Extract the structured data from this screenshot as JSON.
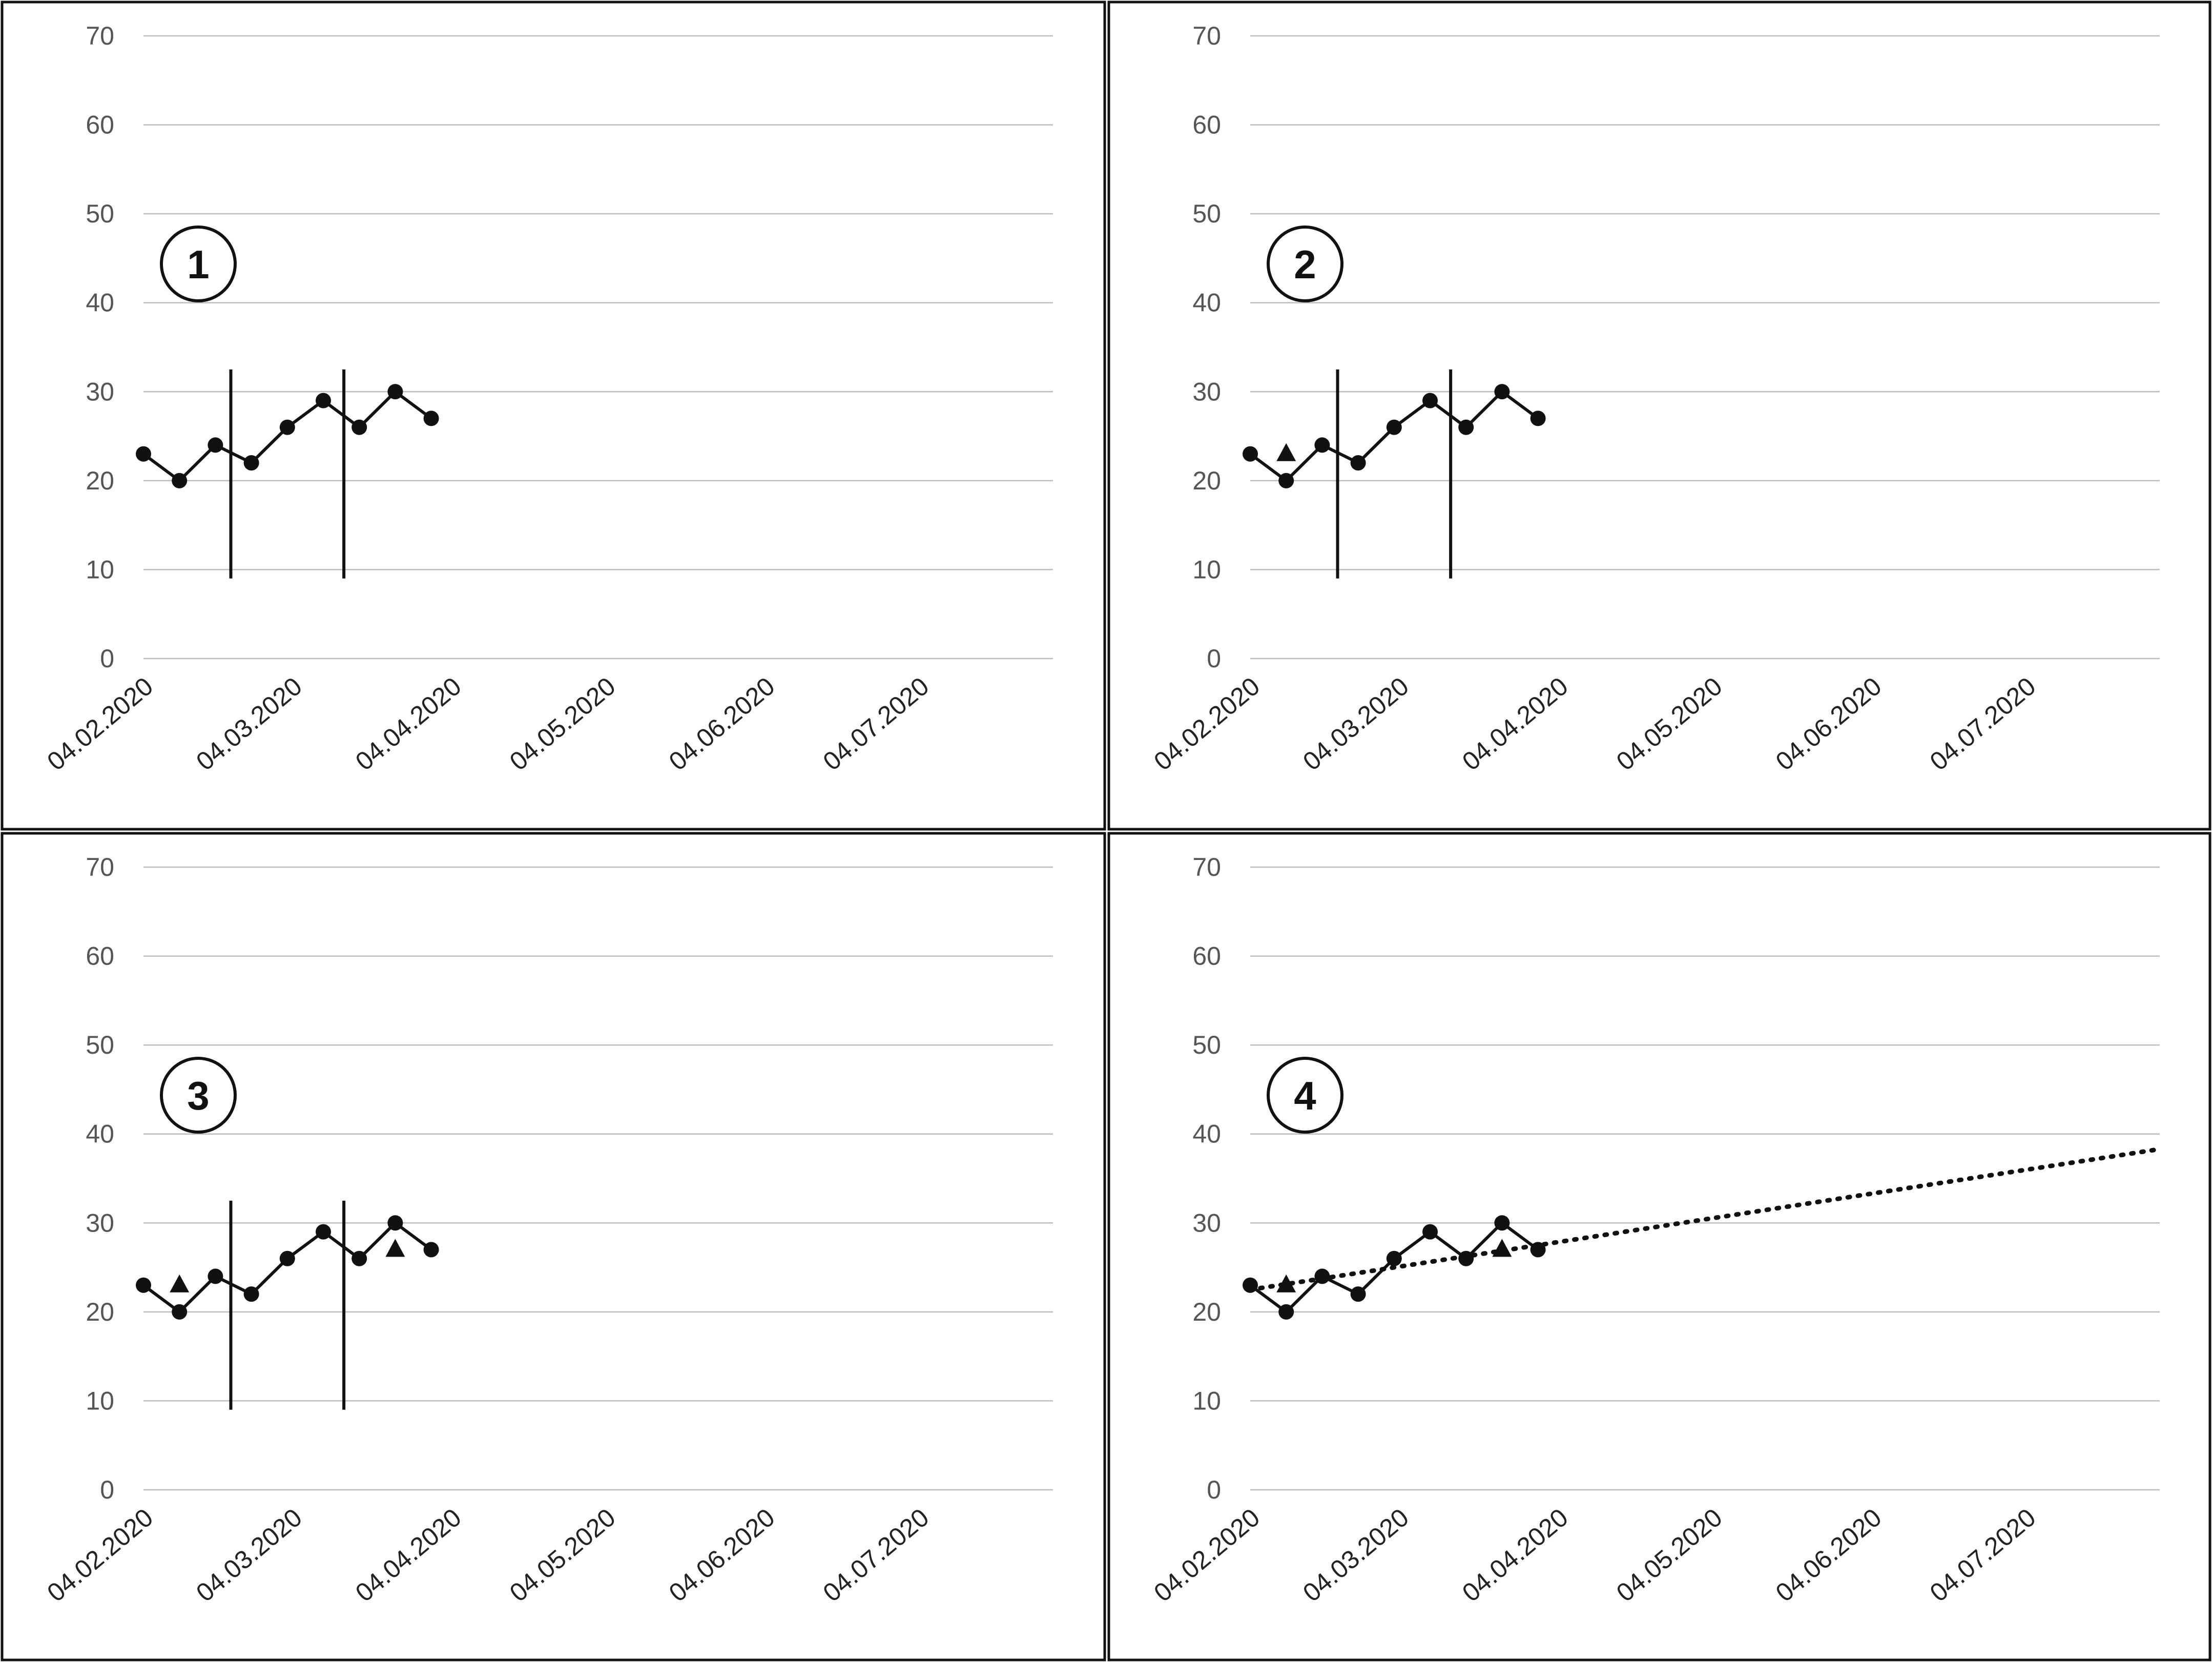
{
  "chart_data": [
    {
      "type": "line",
      "panel_label": "1",
      "ylim": [
        0,
        70
      ],
      "yticks": [
        0,
        10,
        20,
        30,
        40,
        50,
        60,
        70
      ],
      "x_tick_labels": [
        "04.02.2020",
        "04.03.2020",
        "04.04.2020",
        "04.05.2020",
        "04.06.2020",
        "04.07.2020"
      ],
      "xlim": [
        "2020-02-04",
        "2020-07-30"
      ],
      "grid": true,
      "series": [
        {
          "style": "solid-line-circles",
          "points": [
            {
              "x": "2020-02-04",
              "y": 23
            },
            {
              "x": "2020-02-11",
              "y": 20
            },
            {
              "x": "2020-02-18",
              "y": 24
            },
            {
              "x": "2020-02-25",
              "y": 22
            },
            {
              "x": "2020-03-03",
              "y": 26
            },
            {
              "x": "2020-03-10",
              "y": 29
            },
            {
              "x": "2020-03-17",
              "y": 26
            },
            {
              "x": "2020-03-24",
              "y": 30
            },
            {
              "x": "2020-03-31",
              "y": 27
            }
          ]
        }
      ],
      "phase_lines": [
        {
          "x": "2020-02-21",
          "y_from": 9,
          "y_to": 32.5
        },
        {
          "x": "2020-03-14",
          "y_from": 9,
          "y_to": 32.5
        }
      ],
      "markers": [],
      "trend_line": null
    },
    {
      "type": "line",
      "panel_label": "2",
      "ylim": [
        0,
        70
      ],
      "yticks": [
        0,
        10,
        20,
        30,
        40,
        50,
        60,
        70
      ],
      "x_tick_labels": [
        "04.02.2020",
        "04.03.2020",
        "04.04.2020",
        "04.05.2020",
        "04.06.2020",
        "04.07.2020"
      ],
      "xlim": [
        "2020-02-04",
        "2020-07-30"
      ],
      "grid": true,
      "series": [
        {
          "style": "solid-line-circles",
          "points": [
            {
              "x": "2020-02-04",
              "y": 23
            },
            {
              "x": "2020-02-11",
              "y": 20
            },
            {
              "x": "2020-02-18",
              "y": 24
            },
            {
              "x": "2020-02-25",
              "y": 22
            },
            {
              "x": "2020-03-03",
              "y": 26
            },
            {
              "x": "2020-03-10",
              "y": 29
            },
            {
              "x": "2020-03-17",
              "y": 26
            },
            {
              "x": "2020-03-24",
              "y": 30
            },
            {
              "x": "2020-03-31",
              "y": 27
            }
          ]
        }
      ],
      "phase_lines": [
        {
          "x": "2020-02-21",
          "y_from": 9,
          "y_to": 32.5
        },
        {
          "x": "2020-03-14",
          "y_from": 9,
          "y_to": 32.5
        }
      ],
      "markers": [
        {
          "shape": "triangle",
          "x": "2020-02-11",
          "y": 23
        }
      ],
      "trend_line": null
    },
    {
      "type": "line",
      "panel_label": "3",
      "ylim": [
        0,
        70
      ],
      "yticks": [
        0,
        10,
        20,
        30,
        40,
        50,
        60,
        70
      ],
      "x_tick_labels": [
        "04.02.2020",
        "04.03.2020",
        "04.04.2020",
        "04.05.2020",
        "04.06.2020",
        "04.07.2020"
      ],
      "xlim": [
        "2020-02-04",
        "2020-07-30"
      ],
      "grid": true,
      "series": [
        {
          "style": "solid-line-circles",
          "points": [
            {
              "x": "2020-02-04",
              "y": 23
            },
            {
              "x": "2020-02-11",
              "y": 20
            },
            {
              "x": "2020-02-18",
              "y": 24
            },
            {
              "x": "2020-02-25",
              "y": 22
            },
            {
              "x": "2020-03-03",
              "y": 26
            },
            {
              "x": "2020-03-10",
              "y": 29
            },
            {
              "x": "2020-03-17",
              "y": 26
            },
            {
              "x": "2020-03-24",
              "y": 30
            },
            {
              "x": "2020-03-31",
              "y": 27
            }
          ]
        }
      ],
      "phase_lines": [
        {
          "x": "2020-02-21",
          "y_from": 9,
          "y_to": 32.5
        },
        {
          "x": "2020-03-14",
          "y_from": 9,
          "y_to": 32.5
        }
      ],
      "markers": [
        {
          "shape": "triangle",
          "x": "2020-02-11",
          "y": 23
        },
        {
          "shape": "triangle",
          "x": "2020-03-24",
          "y": 27
        }
      ],
      "trend_line": null
    },
    {
      "type": "line",
      "panel_label": "4",
      "ylim": [
        0,
        70
      ],
      "yticks": [
        0,
        10,
        20,
        30,
        40,
        50,
        60,
        70
      ],
      "x_tick_labels": [
        "04.02.2020",
        "04.03.2020",
        "04.04.2020",
        "04.05.2020",
        "04.06.2020",
        "04.07.2020"
      ],
      "xlim": [
        "2020-02-04",
        "2020-07-30"
      ],
      "grid": true,
      "series": [
        {
          "style": "solid-line-circles",
          "points": [
            {
              "x": "2020-02-04",
              "y": 23
            },
            {
              "x": "2020-02-11",
              "y": 20
            },
            {
              "x": "2020-02-18",
              "y": 24
            },
            {
              "x": "2020-02-25",
              "y": 22
            },
            {
              "x": "2020-03-03",
              "y": 26
            },
            {
              "x": "2020-03-10",
              "y": 29
            },
            {
              "x": "2020-03-17",
              "y": 26
            },
            {
              "x": "2020-03-24",
              "y": 30
            },
            {
              "x": "2020-03-31",
              "y": 27
            }
          ]
        }
      ],
      "phase_lines": [],
      "markers": [
        {
          "shape": "triangle",
          "x": "2020-02-11",
          "y": 23
        },
        {
          "shape": "triangle",
          "x": "2020-03-24",
          "y": 27
        }
      ],
      "trend_line": {
        "style": "dotted",
        "from": {
          "x": "2020-02-04",
          "y": 22.5
        },
        "to": {
          "x": "2020-07-30",
          "y": 38.3
        }
      }
    }
  ]
}
